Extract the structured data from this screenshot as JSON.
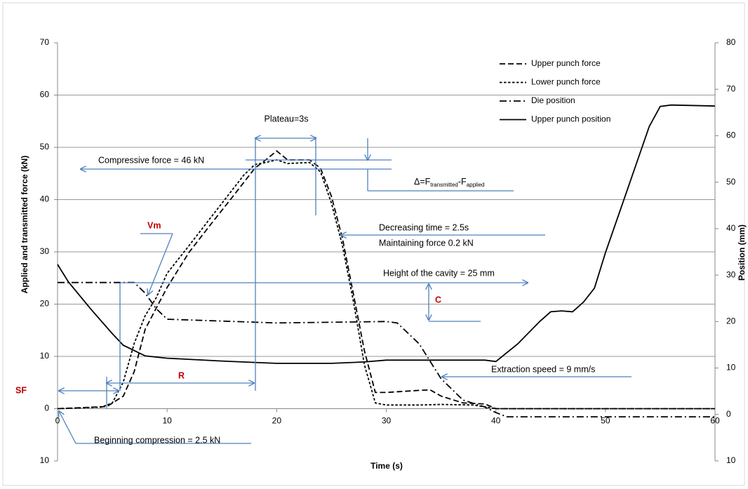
{
  "chart_data": {
    "type": "line",
    "x_label": "Time (s)",
    "y_label": "Applied and transmitted force (kN)",
    "y2_label": "Position (mm)",
    "xlim": [
      0,
      60
    ],
    "xticks": [
      0,
      10,
      20,
      30,
      40,
      50,
      60
    ],
    "ylim": [
      -10,
      70
    ],
    "yticks": [
      {
        "value": -10,
        "label": "10"
      },
      0,
      10,
      20,
      30,
      40,
      50,
      60,
      70
    ],
    "y2lim": [
      -10,
      80
    ],
    "y2ticks": [
      {
        "value": -10,
        "label": "10"
      },
      0,
      10,
      20,
      30,
      40,
      50,
      60,
      70,
      80
    ],
    "grid": true,
    "legend": "top-right",
    "series": [
      {
        "name": "Upper punch force",
        "color": "#000000",
        "style": "dashed",
        "x": [
          0,
          4.5,
          6,
          7,
          8,
          9,
          10,
          12,
          14,
          16,
          18,
          19,
          20,
          21,
          22,
          23,
          24,
          25,
          26,
          27,
          28,
          29,
          30,
          33,
          34,
          35,
          37,
          39,
          40,
          60
        ],
        "values": [
          0,
          0.4,
          2.4,
          7.1,
          15.2,
          19.2,
          23.2,
          29.9,
          35.3,
          40.6,
          46.0,
          47.6,
          49.3,
          47.6,
          47.6,
          47.6,
          46.0,
          40.6,
          32.6,
          21.9,
          11.1,
          3.1,
          3.1,
          3.5,
          3.6,
          2.4,
          1.1,
          0.9,
          0,
          0
        ]
      },
      {
        "name": "Lower punch force",
        "color": "#000000",
        "style": "dotted",
        "x": [
          0,
          4,
          5,
          6,
          7,
          8,
          9,
          10,
          12,
          14,
          16,
          17,
          18,
          19,
          20,
          21,
          23,
          24,
          25,
          26,
          27,
          28,
          29,
          30,
          33,
          35,
          38,
          40,
          60
        ],
        "values": [
          0,
          0.3,
          1.1,
          5.1,
          12.5,
          17.8,
          21.2,
          25.9,
          31.2,
          36.6,
          42.0,
          44.7,
          46.7,
          47.1,
          47.6,
          46.9,
          47.1,
          45.3,
          39.3,
          31.2,
          20.5,
          8.4,
          1.1,
          0.7,
          0.7,
          0.8,
          0.7,
          0,
          0
        ]
      },
      {
        "name": "Die position",
        "color": "#000000",
        "style": "dashdot",
        "axis": "y2",
        "x": [
          0,
          7,
          8,
          9,
          10,
          20,
          30,
          31,
          33,
          35,
          37,
          39,
          40,
          41,
          50,
          60
        ],
        "values": [
          28.4,
          28.4,
          26.1,
          22.8,
          20.5,
          19.7,
          20.0,
          19.7,
          15.2,
          7.7,
          3.1,
          1.6,
          0.4,
          -0.5,
          -0.5,
          -0.5
        ]
      },
      {
        "name": "Upper punch position",
        "color": "#000000",
        "style": "solid",
        "axis": "y2",
        "x": [
          0,
          1,
          3,
          5,
          6,
          8,
          10,
          15,
          18,
          20,
          25,
          28,
          30,
          35,
          39,
          40,
          42,
          44,
          45,
          46,
          47,
          48,
          49,
          50,
          52,
          54,
          55,
          56,
          60
        ],
        "values": [
          32.3,
          28.5,
          22.8,
          17.4,
          14.9,
          12.6,
          12.1,
          11.5,
          11.2,
          11.0,
          11.0,
          11.3,
          11.7,
          11.7,
          11.7,
          11.4,
          15.2,
          20.0,
          22.1,
          22.3,
          22.1,
          24.2,
          27.2,
          34.8,
          48.4,
          62.0,
          66.3,
          66.6,
          66.4
        ]
      }
    ],
    "annotations": {
      "plateau": "Plateau=3s",
      "compressive": "Compressive force = 46 kN",
      "delta": [
        "Δ=F",
        "transmitted",
        "-F",
        "applied"
      ],
      "vm": "Vm",
      "decreasing": "Decreasing time = 2.5s",
      "maintaining": "Maintaining force 0.2 kN",
      "height": "Height of the cavity = 25 mm",
      "c": "C",
      "extraction": "Extraction speed = 9 mm/s",
      "r": "R",
      "sf": "SF",
      "beginning": "Beginning compression = 2.5 kN"
    }
  }
}
